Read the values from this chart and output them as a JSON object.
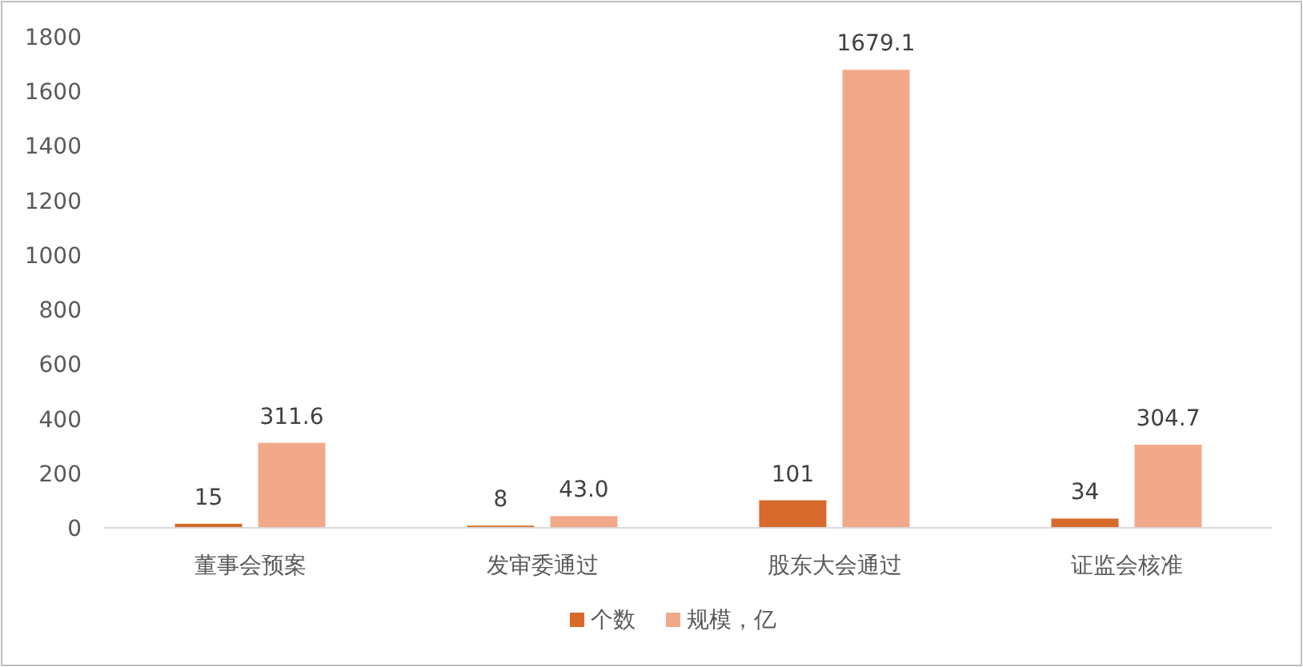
{
  "chart_data": {
    "type": "bar",
    "categories": [
      "董事会预案",
      "发审委通过",
      "股东大会通过",
      "证监会核准"
    ],
    "series": [
      {
        "name": "个数",
        "color": "#d7692b",
        "values": [
          15,
          8,
          101,
          34
        ],
        "value_labels": [
          "15",
          "8",
          "101",
          "34"
        ]
      },
      {
        "name": "规模，亿",
        "color": "#f2a98a",
        "values": [
          311.6,
          43.0,
          1679.1,
          304.7
        ],
        "value_labels": [
          "311.6",
          "43.0",
          "1679.1",
          "304.7"
        ]
      }
    ],
    "ylim": [
      0,
      1800
    ],
    "yticks": [
      0,
      200,
      400,
      600,
      800,
      1000,
      1200,
      1400,
      1600,
      1800
    ],
    "grid": false,
    "legend": "bottom"
  }
}
